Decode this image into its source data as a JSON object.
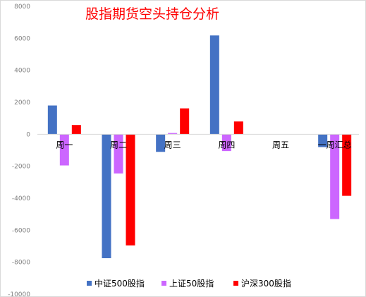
{
  "chart_data": {
    "type": "bar",
    "title": "股指期货空头持仓分析",
    "categories": [
      "周一",
      "周二",
      "周三",
      "周四",
      "周五",
      "一周汇总"
    ],
    "series": [
      {
        "name": "中证500股指",
        "color": "#4472c4",
        "values": [
          1800,
          -7750,
          -1100,
          6180,
          0,
          -800
        ]
      },
      {
        "name": "上证50股指",
        "color": "#cc66ff",
        "values": [
          -1950,
          -2450,
          80,
          -1050,
          0,
          -5300
        ]
      },
      {
        "name": "沪深300股指",
        "color": "#ff0000",
        "values": [
          580,
          -6950,
          1620,
          800,
          0,
          -3850
        ]
      }
    ],
    "yticks": [
      "8000",
      "6000",
      "4000",
      "2000",
      "0",
      "-2000",
      "-4000",
      "-6000",
      "-8000",
      "-10000"
    ],
    "ylim": [
      -10000,
      8000
    ],
    "xlabel": "",
    "ylabel": "",
    "grid": false,
    "legend_position": "bottom"
  }
}
